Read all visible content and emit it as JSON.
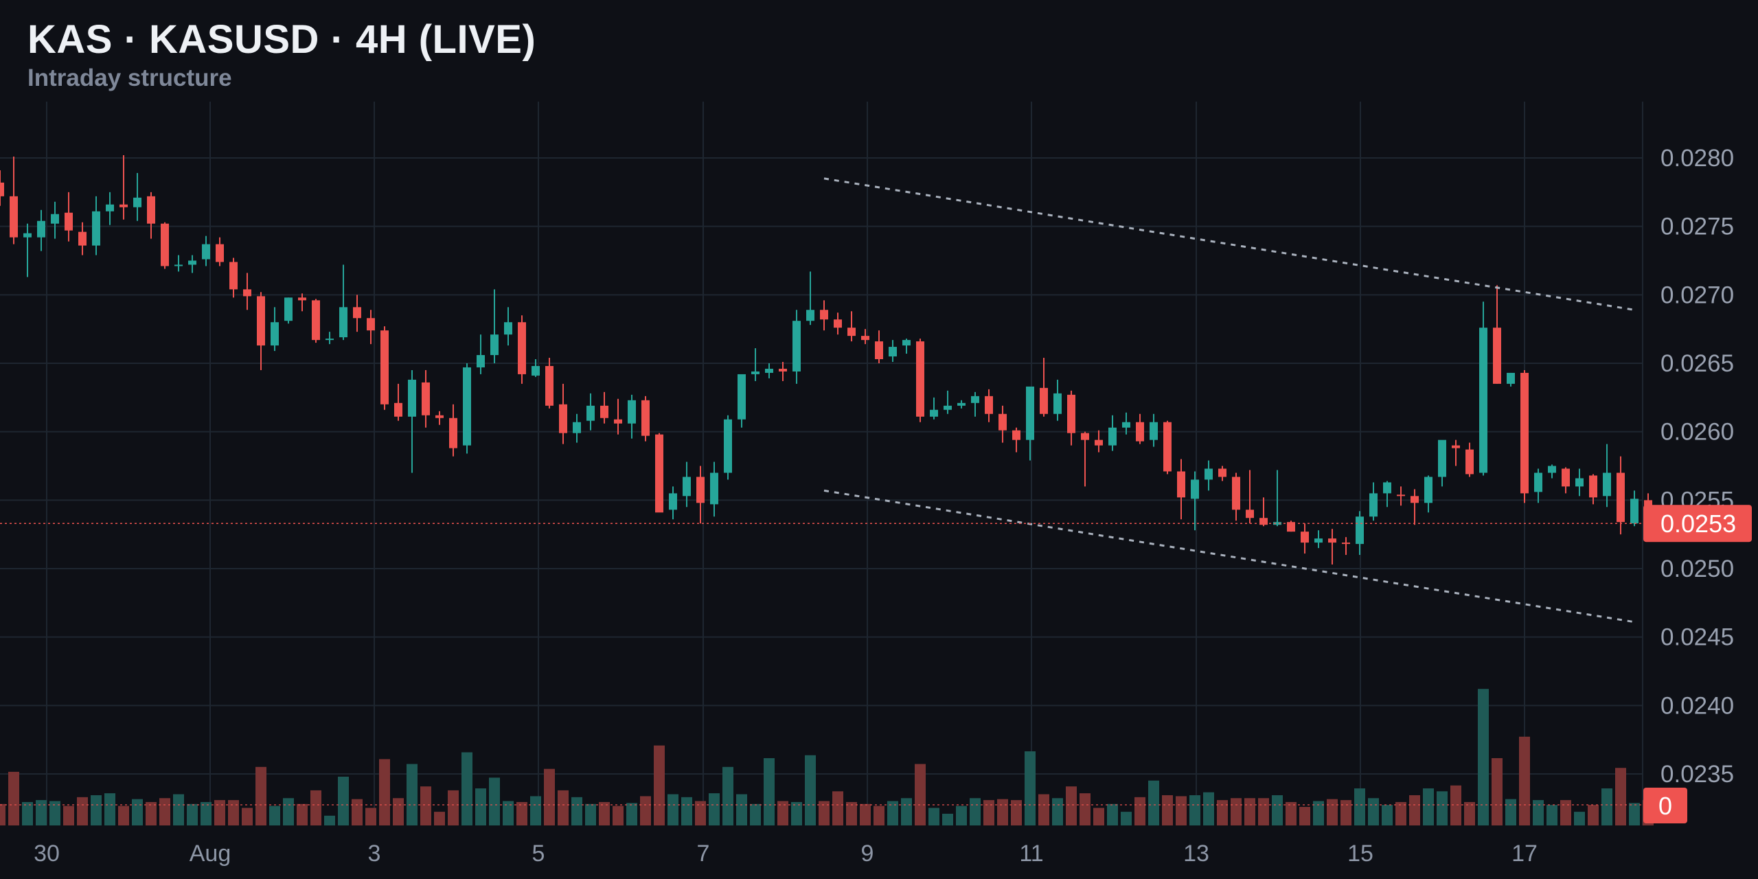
{
  "title": "KAS · KASUSD · 4H (LIVE)",
  "subtitle": "Intraday structure",
  "chart_data": {
    "type": "candlestick",
    "y_ticks": [
      "0.0280",
      "0.0275",
      "0.0270",
      "0.0265",
      "0.0260",
      "0.0255",
      "0.0250",
      "0.0245",
      "0.0240",
      "0.0235"
    ],
    "x_ticks": [
      "30",
      "Aug",
      "3",
      "5",
      "7",
      "9",
      "11",
      "13",
      "15",
      "17"
    ],
    "ylim": [
      0.02315,
      0.0289
    ],
    "grid": true,
    "last_price_label": "0.0253",
    "last_price": 0.02533,
    "volume_label": "0",
    "colors": {
      "up": "#26a69a",
      "down": "#ef5350",
      "grid": "#1e2630",
      "trendline": "#aab2be"
    },
    "trendlines": [
      {
        "start_index": 60,
        "start_price": 0.02785,
        "end_index": 119,
        "end_price": 0.02689
      },
      {
        "start_index": 60,
        "start_price": 0.02557,
        "end_index": 119,
        "end_price": 0.02461
      }
    ],
    "ohlc": [
      [
        0.02782,
        0.02791,
        0.02765,
        0.02772
      ],
      [
        0.02772,
        0.02801,
        0.02737,
        0.02742
      ],
      [
        0.02742,
        0.02752,
        0.02713,
        0.02745
      ],
      [
        0.02742,
        0.02762,
        0.02732,
        0.02754
      ],
      [
        0.02752,
        0.02768,
        0.02741,
        0.02759
      ],
      [
        0.0276,
        0.02775,
        0.02739,
        0.02747
      ],
      [
        0.02746,
        0.02753,
        0.02729,
        0.02736
      ],
      [
        0.02736,
        0.02772,
        0.02729,
        0.02761
      ],
      [
        0.02761,
        0.02775,
        0.02751,
        0.02766
      ],
      [
        0.02766,
        0.02802,
        0.02755,
        0.02764
      ],
      [
        0.02764,
        0.02789,
        0.02754,
        0.02771
      ],
      [
        0.02772,
        0.02775,
        0.02741,
        0.02752
      ],
      [
        0.02752,
        0.02753,
        0.02719,
        0.02721
      ],
      [
        0.02721,
        0.02729,
        0.02717,
        0.02722
      ],
      [
        0.02722,
        0.02729,
        0.02716,
        0.02725
      ],
      [
        0.02726,
        0.02743,
        0.02721,
        0.02737
      ],
      [
        0.02737,
        0.02742,
        0.02721,
        0.02724
      ],
      [
        0.02724,
        0.02727,
        0.02698,
        0.02704
      ],
      [
        0.02704,
        0.02716,
        0.02689,
        0.02699
      ],
      [
        0.02699,
        0.02702,
        0.02645,
        0.02663
      ],
      [
        0.02663,
        0.02691,
        0.02659,
        0.0268
      ],
      [
        0.02681,
        0.02698,
        0.02679,
        0.02698
      ],
      [
        0.02698,
        0.02701,
        0.02688,
        0.02696
      ],
      [
        0.02696,
        0.02697,
        0.02665,
        0.02667
      ],
      [
        0.02667,
        0.02673,
        0.02664,
        0.02668
      ],
      [
        0.02669,
        0.02722,
        0.02667,
        0.02691
      ],
      [
        0.02691,
        0.027,
        0.02673,
        0.02683
      ],
      [
        0.02683,
        0.02689,
        0.02664,
        0.02674
      ],
      [
        0.02674,
        0.02677,
        0.02616,
        0.0262
      ],
      [
        0.02621,
        0.02635,
        0.02608,
        0.02611
      ],
      [
        0.02611,
        0.02645,
        0.0257,
        0.02638
      ],
      [
        0.02636,
        0.02645,
        0.02603,
        0.02612
      ],
      [
        0.02612,
        0.02615,
        0.02605,
        0.0261
      ],
      [
        0.0261,
        0.0262,
        0.02582,
        0.02588
      ],
      [
        0.0259,
        0.0265,
        0.02584,
        0.02647
      ],
      [
        0.02647,
        0.02671,
        0.02642,
        0.02656
      ],
      [
        0.02656,
        0.02704,
        0.0265,
        0.02671
      ],
      [
        0.02671,
        0.02691,
        0.02663,
        0.0268
      ],
      [
        0.0268,
        0.02685,
        0.02635,
        0.02642
      ],
      [
        0.02641,
        0.02653,
        0.0264,
        0.02648
      ],
      [
        0.02648,
        0.02654,
        0.02617,
        0.02619
      ],
      [
        0.0262,
        0.02635,
        0.02591,
        0.02599
      ],
      [
        0.02599,
        0.02613,
        0.02592,
        0.02607
      ],
      [
        0.02608,
        0.02628,
        0.02601,
        0.02619
      ],
      [
        0.02619,
        0.02629,
        0.02606,
        0.0261
      ],
      [
        0.02609,
        0.02624,
        0.02598,
        0.02606
      ],
      [
        0.02606,
        0.02627,
        0.02595,
        0.02623
      ],
      [
        0.02623,
        0.02626,
        0.02593,
        0.02597
      ],
      [
        0.02598,
        0.02599,
        0.02542,
        0.02541
      ],
      [
        0.02543,
        0.0256,
        0.02536,
        0.02555
      ],
      [
        0.02553,
        0.02578,
        0.02545,
        0.02567
      ],
      [
        0.02567,
        0.02575,
        0.02533,
        0.02548
      ],
      [
        0.02547,
        0.02578,
        0.02538,
        0.0257
      ],
      [
        0.0257,
        0.02612,
        0.02565,
        0.02609
      ],
      [
        0.02609,
        0.0264,
        0.02603,
        0.02642
      ],
      [
        0.02642,
        0.02661,
        0.02637,
        0.02644
      ],
      [
        0.02643,
        0.0265,
        0.02639,
        0.02646
      ],
      [
        0.02646,
        0.02651,
        0.02637,
        0.02644
      ],
      [
        0.02644,
        0.02689,
        0.02635,
        0.02681
      ],
      [
        0.02681,
        0.02717,
        0.02678,
        0.02689
      ],
      [
        0.02689,
        0.02696,
        0.02674,
        0.02682
      ],
      [
        0.02682,
        0.02687,
        0.02671,
        0.02676
      ],
      [
        0.02676,
        0.02688,
        0.02666,
        0.0267
      ],
      [
        0.0267,
        0.02675,
        0.02664,
        0.02667
      ],
      [
        0.02666,
        0.02674,
        0.0265,
        0.02653
      ],
      [
        0.02655,
        0.02667,
        0.02651,
        0.02662
      ],
      [
        0.02663,
        0.02668,
        0.02657,
        0.02667
      ],
      [
        0.02666,
        0.02668,
        0.02607,
        0.02611
      ],
      [
        0.02611,
        0.02625,
        0.02609,
        0.02616
      ],
      [
        0.02616,
        0.0263,
        0.02613,
        0.02619
      ],
      [
        0.02619,
        0.02623,
        0.02617,
        0.02621
      ],
      [
        0.02621,
        0.02629,
        0.02611,
        0.02626
      ],
      [
        0.02626,
        0.02631,
        0.02607,
        0.02613
      ],
      [
        0.02613,
        0.02619,
        0.02592,
        0.02601
      ],
      [
        0.02601,
        0.02603,
        0.02585,
        0.02594
      ],
      [
        0.02594,
        0.02629,
        0.02579,
        0.02633
      ],
      [
        0.02632,
        0.02654,
        0.02611,
        0.02613
      ],
      [
        0.02613,
        0.02638,
        0.02608,
        0.02628
      ],
      [
        0.02627,
        0.0263,
        0.0259,
        0.02599
      ],
      [
        0.02599,
        0.026,
        0.0256,
        0.02594
      ],
      [
        0.02594,
        0.02601,
        0.02585,
        0.0259
      ],
      [
        0.0259,
        0.02612,
        0.02586,
        0.02603
      ],
      [
        0.02603,
        0.02614,
        0.02598,
        0.02607
      ],
      [
        0.02607,
        0.02613,
        0.02591,
        0.02593
      ],
      [
        0.02594,
        0.02613,
        0.02589,
        0.02607
      ],
      [
        0.02607,
        0.02608,
        0.02569,
        0.02571
      ],
      [
        0.02571,
        0.0258,
        0.02536,
        0.02552
      ],
      [
        0.02551,
        0.02571,
        0.02528,
        0.02565
      ],
      [
        0.02565,
        0.02579,
        0.02557,
        0.02573
      ],
      [
        0.02573,
        0.02575,
        0.02564,
        0.02567
      ],
      [
        0.02567,
        0.0257,
        0.02535,
        0.02543
      ],
      [
        0.02543,
        0.02572,
        0.02533,
        0.02537
      ],
      [
        0.02537,
        0.02552,
        0.02531,
        0.02532
      ],
      [
        0.02532,
        0.02572,
        0.02531,
        0.02534
      ],
      [
        0.02534,
        0.02535,
        0.02527,
        0.02527
      ],
      [
        0.02527,
        0.02533,
        0.02511,
        0.02519
      ],
      [
        0.02519,
        0.02528,
        0.02515,
        0.02522
      ],
      [
        0.02522,
        0.02529,
        0.02503,
        0.02519
      ],
      [
        0.02519,
        0.02523,
        0.0251,
        0.02518
      ],
      [
        0.02518,
        0.02542,
        0.0251,
        0.02538
      ],
      [
        0.02538,
        0.02563,
        0.02535,
        0.02555
      ],
      [
        0.02555,
        0.02564,
        0.02545,
        0.02563
      ],
      [
        0.02554,
        0.0256,
        0.02546,
        0.02553
      ],
      [
        0.02553,
        0.02558,
        0.02532,
        0.02548
      ],
      [
        0.02548,
        0.02568,
        0.02541,
        0.02567
      ],
      [
        0.02567,
        0.02593,
        0.0256,
        0.02594
      ],
      [
        0.0259,
        0.02594,
        0.02575,
        0.02588
      ],
      [
        0.02587,
        0.02592,
        0.02567,
        0.02569
      ],
      [
        0.0257,
        0.02695,
        0.02568,
        0.02676
      ],
      [
        0.02676,
        0.02707,
        0.02635,
        0.02635
      ],
      [
        0.02635,
        0.02643,
        0.02633,
        0.02643
      ],
      [
        0.02643,
        0.02645,
        0.02548,
        0.02555
      ],
      [
        0.02556,
        0.02573,
        0.02548,
        0.0257
      ],
      [
        0.0257,
        0.02576,
        0.02566,
        0.02575
      ],
      [
        0.02573,
        0.02574,
        0.02555,
        0.0256
      ],
      [
        0.0256,
        0.02573,
        0.02553,
        0.02566
      ],
      [
        0.02568,
        0.02569,
        0.02547,
        0.02552
      ],
      [
        0.02553,
        0.02591,
        0.02545,
        0.0257
      ],
      [
        0.0257,
        0.02582,
        0.02525,
        0.02534
      ],
      [
        0.02533,
        0.02557,
        0.02531,
        0.02551
      ],
      [
        0.0255,
        0.02555,
        0.0253,
        0.02535
      ]
    ],
    "volume": [
      0.22,
      0.55,
      0.24,
      0.26,
      0.25,
      0.2,
      0.29,
      0.31,
      0.33,
      0.2,
      0.27,
      0.24,
      0.28,
      0.32,
      0.22,
      0.24,
      0.26,
      0.26,
      0.18,
      0.6,
      0.2,
      0.28,
      0.22,
      0.36,
      0.1,
      0.5,
      0.27,
      0.18,
      0.68,
      0.28,
      0.63,
      0.4,
      0.14,
      0.36,
      0.75,
      0.38,
      0.49,
      0.25,
      0.24,
      0.3,
      0.58,
      0.36,
      0.29,
      0.22,
      0.24,
      0.2,
      0.23,
      0.3,
      0.82,
      0.32,
      0.29,
      0.25,
      0.33,
      0.6,
      0.32,
      0.22,
      0.69,
      0.25,
      0.24,
      0.72,
      0.25,
      0.35,
      0.24,
      0.22,
      0.2,
      0.25,
      0.28,
      0.63,
      0.18,
      0.12,
      0.2,
      0.28,
      0.26,
      0.27,
      0.26,
      0.76,
      0.32,
      0.28,
      0.4,
      0.33,
      0.18,
      0.22,
      0.14,
      0.29,
      0.46,
      0.31,
      0.3,
      0.31,
      0.34,
      0.26,
      0.28,
      0.28,
      0.28,
      0.31,
      0.24,
      0.19,
      0.25,
      0.27,
      0.26,
      0.38,
      0.28,
      0.21,
      0.24,
      0.31,
      0.38,
      0.35,
      0.41,
      0.24,
      1.4,
      0.69,
      0.27,
      0.91,
      0.26,
      0.21,
      0.26,
      0.14,
      0.21,
      0.38,
      0.59,
      0.23,
      0.26
    ]
  }
}
